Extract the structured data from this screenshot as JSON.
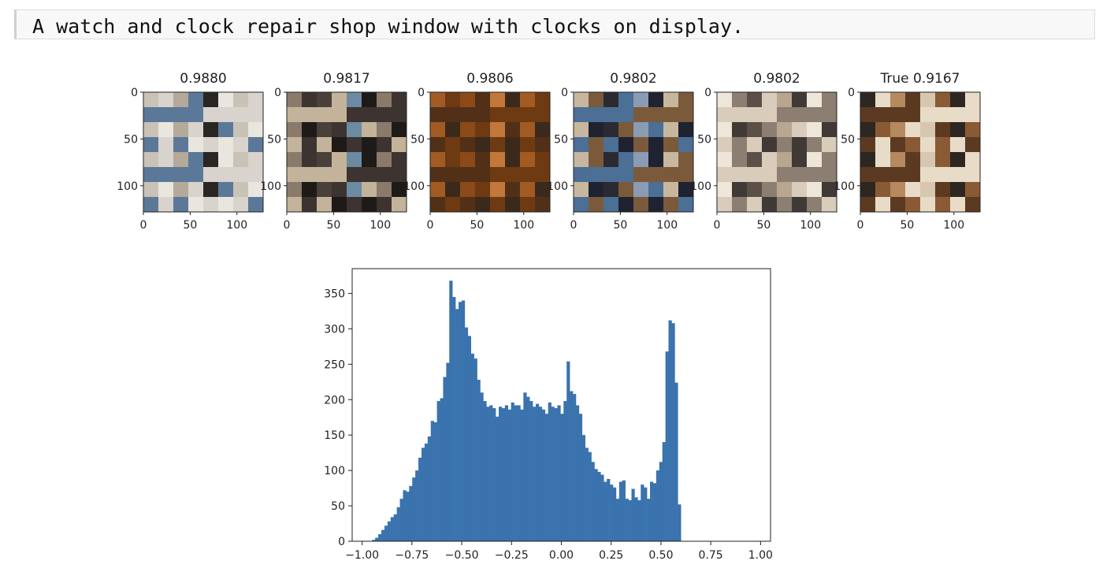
{
  "caption": "A watch and clock repair shop window with clocks on display.",
  "thumbnails": [
    {
      "title": "0.9880",
      "palette": [
        "#c9c2b7",
        "#e9e5df",
        "#2a2624",
        "#5c7898",
        "#b5a99a",
        "#d8d3cd"
      ]
    },
    {
      "title": "0.9817",
      "palette": [
        "#3d3330",
        "#8a7a6a",
        "#1e1a18",
        "#6d8aa3",
        "#c2b39a",
        "#4a403a"
      ]
    },
    {
      "title": "0.9806",
      "palette": [
        "#8b4a17",
        "#6e3a12",
        "#a15b23",
        "#3b2a1c",
        "#c2783a",
        "#523018"
      ]
    },
    {
      "title": "0.9802",
      "palette": [
        "#4b6f95",
        "#2b2a33",
        "#7a5a3a",
        "#c8b79f",
        "#1f2230",
        "#8a9bb4"
      ]
    },
    {
      "title": "0.9802",
      "palette": [
        "#b8a690",
        "#d9ccbb",
        "#5a5048",
        "#8c7e70",
        "#efe6da",
        "#3f3a35"
      ]
    },
    {
      "title": "True 0.9167",
      "palette": [
        "#8a5a35",
        "#d8c7b0",
        "#5c3a22",
        "#b48a5e",
        "#e8dcc8",
        "#2e2620"
      ]
    }
  ],
  "thumb_axes": {
    "xticks": [
      "0",
      "50",
      "100"
    ],
    "yticks": [
      "0",
      "50",
      "100"
    ]
  },
  "chart_data": {
    "type": "bar",
    "title": "",
    "xlabel": "",
    "ylabel": "",
    "xlim": [
      -1.05,
      1.05
    ],
    "ylim": [
      0,
      385
    ],
    "xticks": [
      -1.0,
      -0.75,
      -0.5,
      -0.25,
      0.0,
      0.25,
      0.5,
      0.75,
      1.0
    ],
    "xtick_labels": [
      "−1.00",
      "−0.75",
      "−0.50",
      "−0.25",
      "0.00",
      "0.25",
      "0.50",
      "0.75",
      "1.00"
    ],
    "yticks": [
      0,
      50,
      100,
      150,
      200,
      250,
      300,
      350
    ],
    "ytick_labels": [
      "0",
      "50",
      "100",
      "150",
      "200",
      "250",
      "300",
      "350"
    ],
    "bar_color": "#3a73ad",
    "bin_start": -0.95,
    "bin_width": 0.0155,
    "values": [
      2,
      5,
      10,
      16,
      22,
      28,
      34,
      38,
      48,
      60,
      72,
      70,
      78,
      90,
      100,
      118,
      132,
      138,
      148,
      170,
      168,
      198,
      202,
      232,
      252,
      368,
      345,
      328,
      338,
      340,
      302,
      290,
      265,
      258,
      228,
      210,
      198,
      190,
      192,
      188,
      176,
      190,
      188,
      192,
      186,
      196,
      192,
      192,
      186,
      210,
      204,
      198,
      190,
      194,
      190,
      186,
      180,
      196,
      190,
      188,
      192,
      180,
      198,
      254,
      212,
      208,
      192,
      180,
      150,
      132,
      126,
      112,
      102,
      98,
      94,
      84,
      88,
      80,
      76,
      60,
      84,
      86,
      60,
      58,
      74,
      62,
      58,
      80,
      76,
      60,
      84,
      82,
      100,
      112,
      140,
      268,
      312,
      308,
      224,
      52
    ]
  }
}
